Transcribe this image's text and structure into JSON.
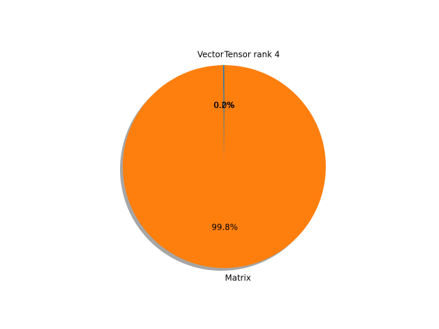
{
  "chart_data": {
    "type": "pie",
    "labels": [
      "Vector",
      "Matrix",
      "Tensor rank 4"
    ],
    "values": [
      0.2,
      99.8,
      0.0
    ],
    "percent_labels": [
      "0.2%",
      "99.8%",
      "0.0%"
    ],
    "colors": [
      "#1f77b4",
      "#ff7f0e",
      "#2ca02c"
    ],
    "shadow": true,
    "start_angle_deg": 90,
    "direction": "counterclockwise",
    "title": ""
  }
}
